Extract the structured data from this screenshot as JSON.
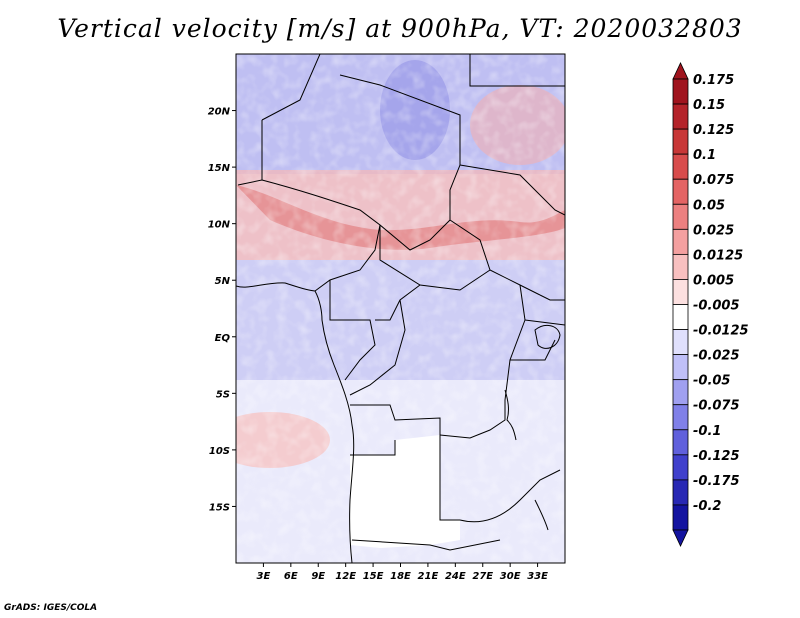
{
  "title": "Vertical velocity [m/s] at 900hPa, VT: 2020032803",
  "footer": "GrADS: IGES/COLA",
  "map": {
    "lon_range": [
      0,
      36
    ],
    "lat_range": [
      -20,
      25
    ],
    "lon_ticks": [
      {
        "value": 3,
        "label": "3E"
      },
      {
        "value": 6,
        "label": "6E"
      },
      {
        "value": 9,
        "label": "9E"
      },
      {
        "value": 12,
        "label": "12E"
      },
      {
        "value": 15,
        "label": "15E"
      },
      {
        "value": 18,
        "label": "18E"
      },
      {
        "value": 21,
        "label": "21E"
      },
      {
        "value": 24,
        "label": "24E"
      },
      {
        "value": 27,
        "label": "27E"
      },
      {
        "value": 30,
        "label": "30E"
      },
      {
        "value": 33,
        "label": "33E"
      }
    ],
    "lat_ticks": [
      {
        "value": 20,
        "label": "20N"
      },
      {
        "value": 15,
        "label": "15N"
      },
      {
        "value": 10,
        "label": "10N"
      },
      {
        "value": 5,
        "label": "5N"
      },
      {
        "value": 0,
        "label": "EQ"
      },
      {
        "value": -5,
        "label": "5S"
      },
      {
        "value": -10,
        "label": "10S"
      },
      {
        "value": -15,
        "label": "15S"
      }
    ]
  },
  "colorbar": {
    "levels": [
      {
        "label": "0.175",
        "color": "#a0141e"
      },
      {
        "label": "0.15",
        "color": "#b4232a"
      },
      {
        "label": "0.125",
        "color": "#c83737"
      },
      {
        "label": "0.1",
        "color": "#d84c4c"
      },
      {
        "label": "0.075",
        "color": "#e46464"
      },
      {
        "label": "0.05",
        "color": "#ec8080"
      },
      {
        "label": "0.025",
        "color": "#f4a0a0"
      },
      {
        "label": "0.0125",
        "color": "#f8c0c0"
      },
      {
        "label": "0.005",
        "color": "#fce0e0"
      },
      {
        "label": "-0.005",
        "color": "#ffffff"
      },
      {
        "label": "-0.0125",
        "color": "#e0e0fc"
      },
      {
        "label": "-0.025",
        "color": "#c0c0f8"
      },
      {
        "label": "-0.05",
        "color": "#a0a0f0"
      },
      {
        "label": "-0.075",
        "color": "#8080e8"
      },
      {
        "label": "-0.1",
        "color": "#6060dc"
      },
      {
        "label": "-0.125",
        "color": "#4040cc"
      },
      {
        "label": "-0.175",
        "color": "#2828b4"
      },
      {
        "label": "-0.2",
        "color": "#1414a0"
      }
    ],
    "end_colors": {
      "top": "#a0141e",
      "bottom": "#1414a0"
    }
  }
}
